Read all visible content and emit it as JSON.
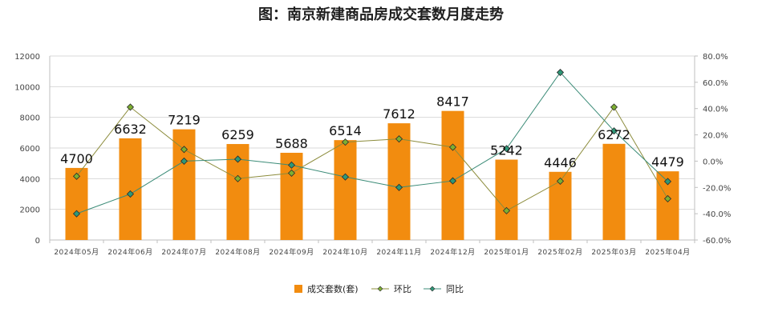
{
  "title": "图：南京新建商品房成交套数月度走势",
  "colors": {
    "bar": "#F28C0F",
    "mom_line": "#8C8C3C",
    "mom_marker": "#7DAF32",
    "yoy_line": "#3C8C78",
    "yoy_marker": "#2E9878",
    "grid": "#D9D9D9",
    "axis": "#BFBFBF"
  },
  "chart_data": {
    "type": "bar",
    "title": "图：南京新建商品房成交套数月度走势",
    "categories": [
      "2024年05月",
      "2024年06月",
      "2024年07月",
      "2024年08月",
      "2024年09月",
      "2024年10月",
      "2024年11月",
      "2024年12月",
      "2025年01月",
      "2025年02月",
      "2025年03月",
      "2025年04月"
    ],
    "series": [
      {
        "name": "成交套数(套)",
        "type": "bar",
        "axis": "left",
        "values": [
          4700,
          6632,
          7219,
          6259,
          5688,
          6514,
          7612,
          8417,
          5242,
          4446,
          6272,
          4479
        ]
      },
      {
        "name": "环比",
        "type": "line",
        "axis": "right",
        "unit": "%",
        "values": [
          -11.5,
          41.1,
          8.9,
          -13.3,
          -9.1,
          14.5,
          16.9,
          10.6,
          -37.7,
          -15.2,
          41.1,
          -28.6
        ]
      },
      {
        "name": "同比",
        "type": "line",
        "axis": "right",
        "unit": "%",
        "values": [
          -40.0,
          -25.0,
          0.0,
          1.5,
          -3.0,
          -12.0,
          -20.0,
          -15.0,
          9.5,
          67.5,
          23.0,
          -15.5
        ]
      }
    ],
    "y_left": {
      "min": 0,
      "max": 12000,
      "ticks": [
        "0",
        "2000",
        "4000",
        "6000",
        "8000",
        "10000",
        "12000"
      ]
    },
    "y_right": {
      "min": -60,
      "max": 80,
      "ticks": [
        "-60.0%",
        "-40.0%",
        "-20.0%",
        "0.0%",
        "20.0%",
        "40.0%",
        "60.0%",
        "80.0%"
      ]
    },
    "data_labels": [
      "4700",
      "6632",
      "7219",
      "6259",
      "5688",
      "6514",
      "7612",
      "8417",
      "5242",
      "4446",
      "6272",
      "4479"
    ],
    "grid": true,
    "legend_position": "bottom-center"
  },
  "legend": {
    "bar_label": "成交套数(套)",
    "mom_label": "环比",
    "yoy_label": "同比"
  }
}
